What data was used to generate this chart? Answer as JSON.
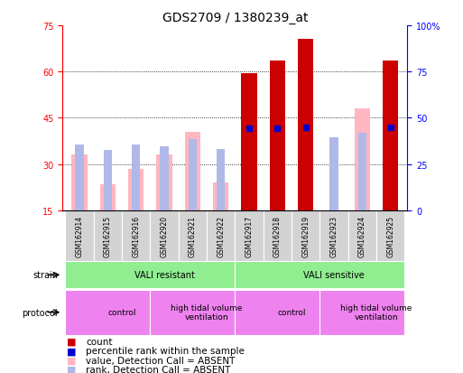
{
  "title": "GDS2709 / 1380239_at",
  "samples": [
    "GSM162914",
    "GSM162915",
    "GSM162916",
    "GSM162920",
    "GSM162921",
    "GSM162922",
    "GSM162917",
    "GSM162918",
    "GSM162919",
    "GSM162923",
    "GSM162924",
    "GSM162925"
  ],
  "count_values": [
    null,
    null,
    null,
    null,
    null,
    null,
    59.5,
    63.5,
    70.5,
    null,
    null,
    63.5
  ],
  "rank_values": [
    null,
    null,
    null,
    null,
    null,
    null,
    44.5,
    44.5,
    45.0,
    null,
    null,
    45.0
  ],
  "absent_value": [
    33.0,
    23.5,
    28.5,
    33.0,
    40.5,
    24.0,
    null,
    null,
    null,
    null,
    48.0,
    null
  ],
  "absent_rank": [
    35.5,
    32.5,
    35.5,
    34.5,
    38.5,
    33.0,
    null,
    null,
    null,
    39.5,
    42.0,
    null
  ],
  "strain_groups": [
    {
      "label": "VALI resistant",
      "start": 0,
      "end": 6
    },
    {
      "label": "VALI sensitive",
      "start": 6,
      "end": 12
    }
  ],
  "protocol_groups": [
    {
      "label": "control",
      "start": 0,
      "end": 3
    },
    {
      "label": "high tidal volume\nventilation",
      "start": 3,
      "end": 6
    },
    {
      "label": "control",
      "start": 6,
      "end": 9
    },
    {
      "label": "high tidal volume\nventilation",
      "start": 9,
      "end": 12
    }
  ],
  "ylim_left": [
    15,
    75
  ],
  "ylim_right": [
    0,
    100
  ],
  "yticks_left": [
    15,
    30,
    45,
    60,
    75
  ],
  "yticks_right": [
    0,
    25,
    50,
    75,
    100
  ],
  "ytick_labels_right": [
    "0",
    "25",
    "50",
    "75",
    "100%"
  ],
  "count_color": "#cc0000",
  "rank_color": "#0000cc",
  "absent_value_color": "#ffb6c1",
  "absent_rank_color": "#b0b8e8",
  "strain_color": "#90ee90",
  "protocol_color": "#ee82ee",
  "sample_box_color": "#d3d3d3",
  "title_fontsize": 10,
  "tick_fontsize": 7,
  "sample_fontsize": 5.5,
  "annotation_fontsize": 7,
  "legend_fontsize": 7.5
}
